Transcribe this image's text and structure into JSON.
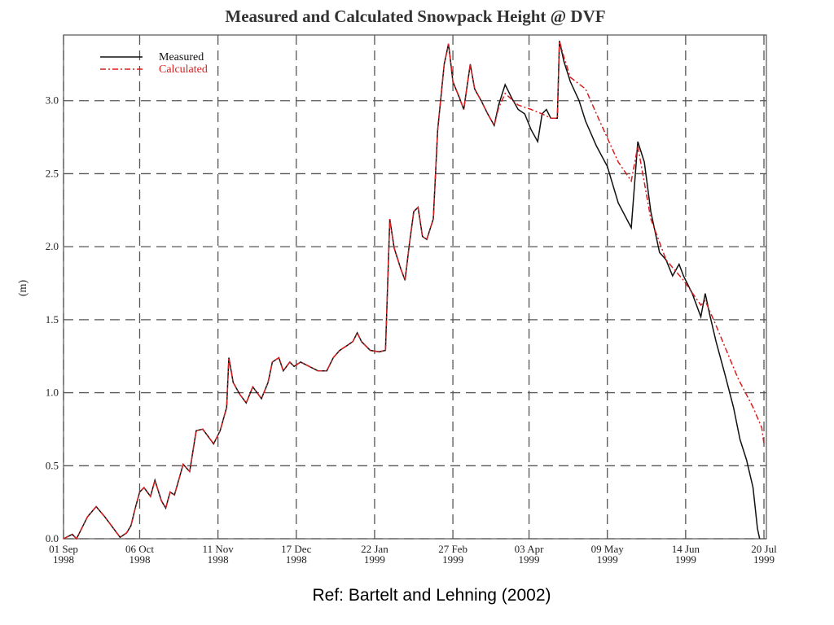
{
  "chart_data": {
    "type": "line",
    "title": "Measured and Calculated Snowpack Height @ DVF",
    "y_label": "(m)",
    "xlim": [
      "1998-09-01",
      "1999-07-20"
    ],
    "xticks": [
      {
        "value": "1998-09-01",
        "label": [
          "01 Sep",
          "1998"
        ]
      },
      {
        "value": "1998-10-06",
        "label": [
          "06 Oct",
          "1998"
        ]
      },
      {
        "value": "1998-11-11",
        "label": [
          "11 Nov",
          "1998"
        ]
      },
      {
        "value": "1998-12-17",
        "label": [
          "17 Dec",
          "1998"
        ]
      },
      {
        "value": "1999-01-22",
        "label": [
          "22 Jan",
          "1999"
        ]
      },
      {
        "value": "1999-02-27",
        "label": [
          "27 Feb",
          "1999"
        ]
      },
      {
        "value": "1999-04-03",
        "label": [
          "03 Apr",
          "1999"
        ]
      },
      {
        "value": "1999-05-09",
        "label": [
          "09 May",
          "1999"
        ]
      },
      {
        "value": "1999-06-14",
        "label": [
          "14 Jun",
          "1999"
        ]
      },
      {
        "value": "1999-07-20",
        "label": [
          "20 Jul",
          "1999"
        ]
      }
    ],
    "ylim": [
      0,
      3.45
    ],
    "yticks": [
      {
        "value": 0,
        "label": "0.0"
      },
      0.5,
      {
        "value": 1,
        "label": "1.0"
      },
      1.5,
      {
        "value": 2,
        "label": "2.0"
      },
      2.5,
      {
        "value": 3,
        "label": "3.0"
      }
    ],
    "grid": true,
    "legend": "top-left",
    "series": [
      {
        "name": "Measured",
        "color": "#111111",
        "dash": "solid",
        "x": [
          "1998-09-01",
          "1998-09-05",
          "1998-09-07",
          "1998-09-12",
          "1998-09-16",
          "1998-09-20",
          "1998-09-24",
          "1998-09-27",
          "1998-09-30",
          "1998-10-02",
          "1998-10-04",
          "1998-10-06",
          "1998-10-08",
          "1998-10-11",
          "1998-10-13",
          "1998-10-16",
          "1998-10-18",
          "1998-10-20",
          "1998-10-22",
          "1998-10-26",
          "1998-10-29",
          "1998-11-01",
          "1998-11-04",
          "1998-11-06",
          "1998-11-09",
          "1998-11-12",
          "1998-11-15",
          "1998-11-16",
          "1998-11-18",
          "1998-11-21",
          "1998-11-24",
          "1998-11-27",
          "1998-12-01",
          "1998-12-04",
          "1998-12-06",
          "1998-12-09",
          "1998-12-11",
          "1998-12-14",
          "1998-12-16",
          "1998-12-19",
          "1998-12-23",
          "1998-12-27",
          "1998-12-31",
          "1999-01-03",
          "1999-01-06",
          "1999-01-09",
          "1999-01-12",
          "1999-01-14",
          "1999-01-16",
          "1999-01-20",
          "1999-01-24",
          "1999-01-27",
          "1999-01-29",
          "1999-01-31",
          "1999-02-03",
          "1999-02-05",
          "1999-02-07",
          "1999-02-09",
          "1999-02-11",
          "1999-02-13",
          "1999-02-15",
          "1999-02-18",
          "1999-02-20",
          "1999-02-23",
          "1999-02-25",
          "1999-02-27",
          "1999-03-02",
          "1999-03-04",
          "1999-03-07",
          "1999-03-09",
          "1999-03-12",
          "1999-03-15",
          "1999-03-18",
          "1999-03-20",
          "1999-03-23",
          "1999-03-26",
          "1999-03-29",
          "1999-04-01",
          "1999-04-04",
          "1999-04-07",
          "1999-04-09",
          "1999-04-11",
          "1999-04-13",
          "1999-04-16",
          "1999-04-17",
          "1999-04-19",
          "1999-04-22",
          "1999-04-26",
          "1999-04-29",
          "1999-05-04",
          "1999-05-09",
          "1999-05-14",
          "1999-05-20",
          "1999-05-23",
          "1999-05-26",
          "1999-05-29",
          "1999-06-02",
          "1999-06-05",
          "1999-06-08",
          "1999-06-11",
          "1999-06-13",
          "1999-06-17",
          "1999-06-21",
          "1999-06-23",
          "1999-06-25",
          "1999-06-28",
          "1999-07-02",
          "1999-07-06",
          "1999-07-09",
          "1999-07-12",
          "1999-07-15",
          "1999-07-17",
          "1999-07-18"
        ],
        "values": [
          0,
          0.03,
          0,
          0.15,
          0.22,
          0.15,
          0.07,
          0.01,
          0.04,
          0.09,
          0.21,
          0.32,
          0.35,
          0.29,
          0.4,
          0.26,
          0.21,
          0.32,
          0.3,
          0.51,
          0.46,
          0.74,
          0.75,
          0.71,
          0.65,
          0.74,
          0.9,
          1.24,
          1.07,
          0.99,
          0.93,
          1.04,
          0.96,
          1.07,
          1.21,
          1.24,
          1.15,
          1.21,
          1.18,
          1.21,
          1.18,
          1.15,
          1.15,
          1.24,
          1.29,
          1.32,
          1.35,
          1.41,
          1.35,
          1.29,
          1.28,
          1.29,
          2.19,
          1.99,
          1.85,
          1.77,
          2.02,
          2.24,
          2.27,
          2.07,
          2.05,
          2.19,
          2.8,
          3.25,
          3.39,
          3.13,
          3.02,
          2.94,
          3.25,
          3.08,
          3,
          2.91,
          2.83,
          2.97,
          3.11,
          3.02,
          2.94,
          2.91,
          2.8,
          2.72,
          2.91,
          2.94,
          2.88,
          2.88,
          3.41,
          3.27,
          3.13,
          3,
          2.86,
          2.69,
          2.55,
          2.3,
          2.13,
          2.72,
          2.58,
          2.24,
          1.96,
          1.91,
          1.8,
          1.88,
          1.8,
          1.68,
          1.52,
          1.68,
          1.54,
          1.35,
          1.13,
          0.9,
          0.68,
          0.54,
          0.35,
          0.07,
          0
        ]
      },
      {
        "name": "Calculated",
        "color": "#d81e1e",
        "dash": "dashdot",
        "x": [
          "1998-09-01",
          "1998-09-05",
          "1998-09-07",
          "1998-09-12",
          "1998-09-16",
          "1998-09-20",
          "1998-09-24",
          "1998-09-27",
          "1998-09-30",
          "1998-10-02",
          "1998-10-04",
          "1998-10-06",
          "1998-10-08",
          "1998-10-11",
          "1998-10-13",
          "1998-10-16",
          "1998-10-18",
          "1998-10-20",
          "1998-10-22",
          "1998-10-26",
          "1998-10-29",
          "1998-11-01",
          "1998-11-04",
          "1998-11-06",
          "1998-11-09",
          "1998-11-12",
          "1998-11-15",
          "1998-11-16",
          "1998-11-18",
          "1998-11-21",
          "1998-11-24",
          "1998-11-27",
          "1998-12-01",
          "1998-12-04",
          "1998-12-06",
          "1998-12-09",
          "1998-12-11",
          "1998-12-14",
          "1998-12-16",
          "1998-12-19",
          "1998-12-23",
          "1998-12-27",
          "1998-12-31",
          "1999-01-03",
          "1999-01-06",
          "1999-01-09",
          "1999-01-12",
          "1999-01-14",
          "1999-01-16",
          "1999-01-20",
          "1999-01-24",
          "1999-01-27",
          "1999-01-29",
          "1999-01-31",
          "1999-02-03",
          "1999-02-05",
          "1999-02-07",
          "1999-02-09",
          "1999-02-11",
          "1999-02-13",
          "1999-02-15",
          "1999-02-18",
          "1999-02-20",
          "1999-02-23",
          "1999-02-25",
          "1999-02-27",
          "1999-03-02",
          "1999-03-04",
          "1999-03-07",
          "1999-03-09",
          "1999-03-12",
          "1999-03-15",
          "1999-03-18",
          "1999-03-20",
          "1999-03-23",
          "1999-03-29",
          "1999-04-04",
          "1999-04-09",
          "1999-04-13",
          "1999-04-16",
          "1999-04-17",
          "1999-04-19",
          "1999-04-22",
          "1999-04-29",
          "1999-05-04",
          "1999-05-14",
          "1999-05-20",
          "1999-05-23",
          "1999-05-29",
          "1999-06-05",
          "1999-06-13",
          "1999-06-21",
          "1999-06-23",
          "1999-06-28",
          "1999-07-08",
          "1999-07-15",
          "1999-07-19",
          "1999-07-20"
        ],
        "values": [
          0,
          0.03,
          0,
          0.15,
          0.22,
          0.15,
          0.07,
          0.01,
          0.04,
          0.09,
          0.21,
          0.32,
          0.35,
          0.29,
          0.4,
          0.26,
          0.21,
          0.32,
          0.3,
          0.51,
          0.46,
          0.74,
          0.75,
          0.71,
          0.65,
          0.74,
          0.9,
          1.24,
          1.07,
          0.99,
          0.93,
          1.04,
          0.96,
          1.07,
          1.21,
          1.24,
          1.15,
          1.21,
          1.18,
          1.21,
          1.18,
          1.15,
          1.15,
          1.24,
          1.29,
          1.32,
          1.35,
          1.41,
          1.35,
          1.29,
          1.28,
          1.29,
          2.19,
          1.99,
          1.85,
          1.77,
          2.02,
          2.24,
          2.27,
          2.07,
          2.05,
          2.19,
          2.8,
          3.25,
          3.39,
          3.13,
          3.02,
          2.94,
          3.25,
          3.08,
          3,
          2.91,
          2.83,
          2.95,
          3.05,
          2.97,
          2.94,
          2.91,
          2.88,
          2.88,
          3.41,
          3.3,
          3.16,
          3.08,
          2.91,
          2.58,
          2.45,
          2.69,
          2.19,
          1.91,
          1.77,
          1.6,
          1.63,
          1.46,
          1.1,
          0.9,
          0.76,
          0.65
        ]
      }
    ]
  },
  "caption": "Ref: Bartelt and Lehning (2002)"
}
